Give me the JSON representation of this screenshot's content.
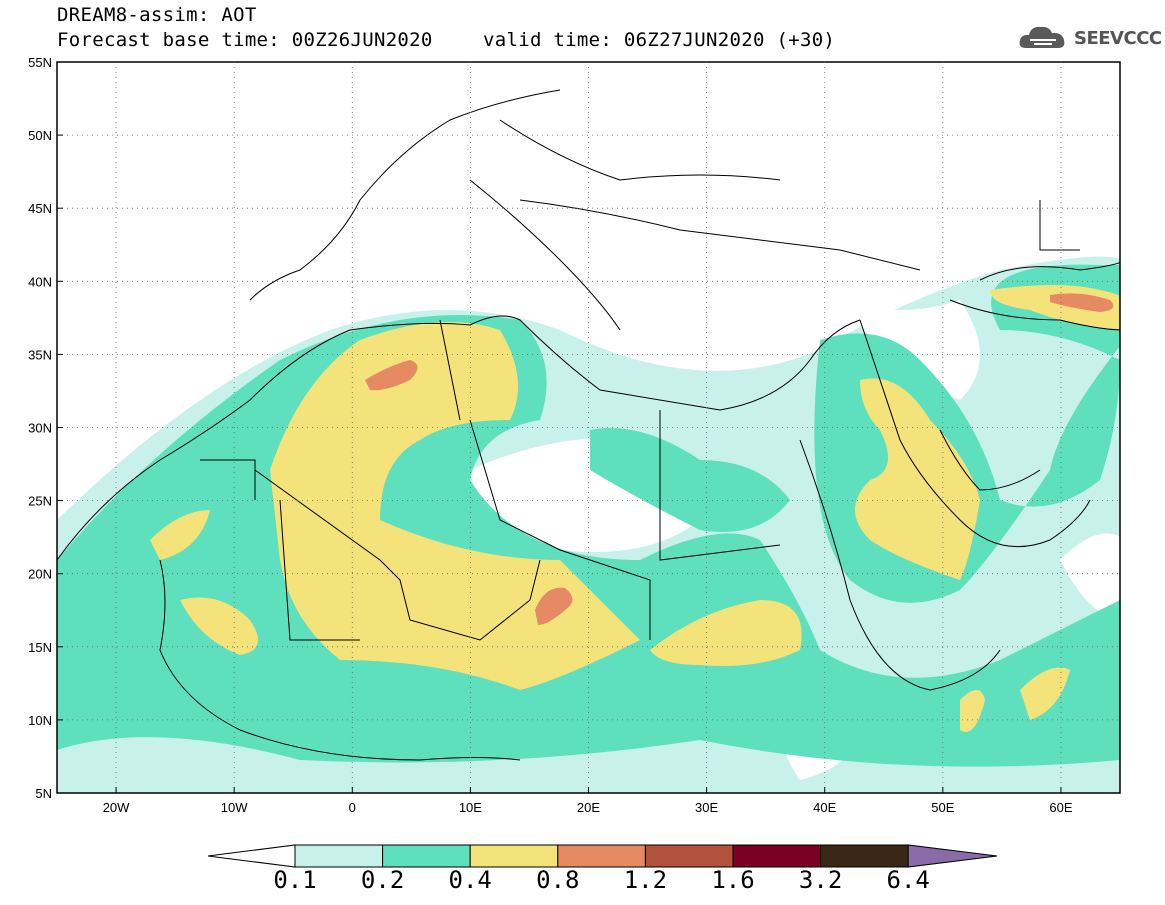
{
  "title": {
    "line1": "DREAM8-assim: AOT",
    "line2": "Forecast base time: 00Z26JUN2020",
    "valid": "valid time: 06Z27JUN2020 (+30)"
  },
  "logo": {
    "text": "SEEVCCC",
    "icon": "cloud-icon"
  },
  "map": {
    "lat_labels": [
      "55N",
      "50N",
      "45N",
      "40N",
      "35N",
      "30N",
      "25N",
      "20N",
      "15N",
      "10N",
      "5N"
    ],
    "lon_labels": [
      "20W",
      "10W",
      "0",
      "10E",
      "20E",
      "30E",
      "40E",
      "50E",
      "60E"
    ],
    "lon_range": [
      -25,
      65
    ],
    "lat_range": [
      5,
      55
    ]
  },
  "colorbar": {
    "labels": [
      "0.1",
      "0.2",
      "0.4",
      "0.8",
      "1.2",
      "1.6",
      "3.2",
      "6.4"
    ],
    "colors": [
      "#ffffff",
      "#c9f1ec",
      "#5ee0bf",
      "#f4e27a",
      "#e68a63",
      "#b2523e",
      "#7a0024",
      "#3a2716",
      "#8b6aa8"
    ]
  }
}
